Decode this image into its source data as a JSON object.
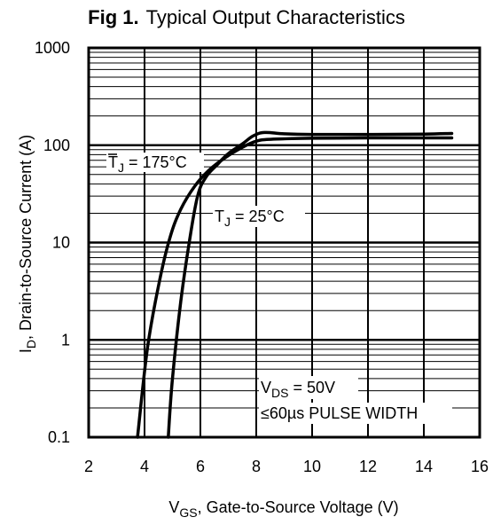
{
  "chart_data": {
    "type": "line",
    "title_prefix": "Fig 1.",
    "title": "Typical Output Characteristics",
    "xlabel": {
      "main": "V",
      "sub": "GS",
      "rest": ", Gate-to-Source Voltage (V)"
    },
    "ylabel": {
      "main": "I",
      "sub": "D",
      "rest": ", Drain-to-Source Current  (A)"
    },
    "x_scale": "linear",
    "y_scale": "log",
    "xlim": [
      2,
      16
    ],
    "ylim": [
      0.1,
      1000
    ],
    "x_ticks": [
      2,
      4,
      6,
      8,
      10,
      12,
      14,
      16
    ],
    "x_tick_labels": [
      "2",
      "4",
      "6",
      "8",
      "10",
      "12",
      "14",
      "16"
    ],
    "y_ticks": [
      0.1,
      1,
      10,
      100,
      1000
    ],
    "y_tick_labels": [
      "0.1",
      "1",
      "10",
      "100",
      "1000"
    ],
    "grid": true,
    "series": [
      {
        "key": "tj175",
        "x": [
          3.75,
          4.1,
          4.5,
          4.9,
          5.3,
          5.8,
          6.3,
          6.9,
          7.5,
          8.0,
          8.5,
          10,
          12,
          14,
          15
        ],
        "y": [
          0.1,
          0.8,
          3.6,
          11,
          22,
          38,
          55,
          75,
          95,
          110,
          115,
          118,
          119,
          119,
          119
        ]
      },
      {
        "key": "tj25",
        "x": [
          4.85,
          5.0,
          5.3,
          5.6,
          5.9,
          6.2,
          6.6,
          7.0,
          7.5,
          7.9,
          8.3,
          9,
          10,
          12,
          14,
          15
        ],
        "y": [
          0.1,
          0.4,
          2.5,
          10,
          30,
          47,
          63,
          82,
          103,
          125,
          135,
          131,
          129,
          129,
          130,
          132
        ]
      }
    ],
    "annotations": {
      "tj175": {
        "main": "T",
        "sub": "J",
        "rest": " = 175°C"
      },
      "tj25": {
        "main": "T",
        "sub": "J",
        "rest": " = 25°C"
      },
      "vds": {
        "main": "V",
        "sub": "DS",
        "rest": " = 50V"
      },
      "pulse": "≤60µs PULSE WIDTH"
    }
  }
}
